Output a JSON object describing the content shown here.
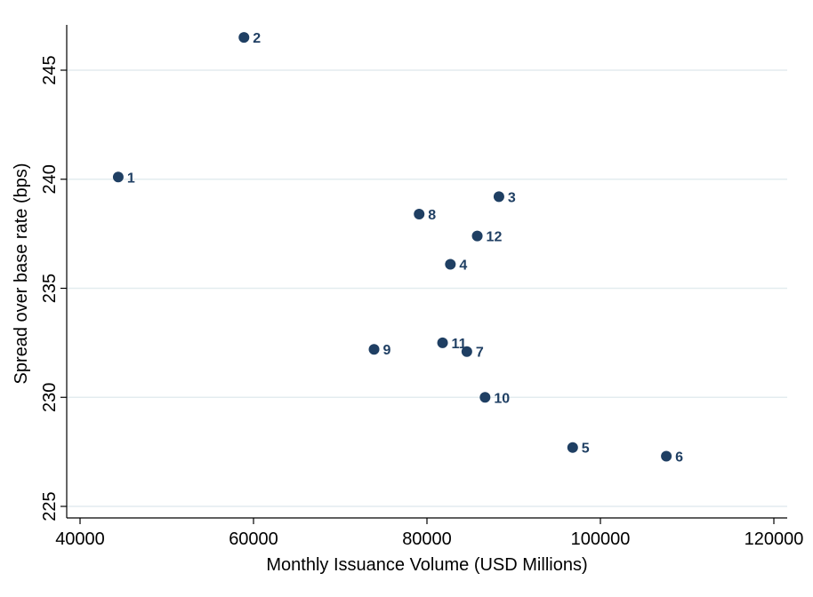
{
  "chart_data": {
    "type": "scatter",
    "title": "",
    "xlabel": "Monthly Issuance Volume (USD Millions)",
    "ylabel": "Spread over base rate (bps)",
    "xlim": [
      40000,
      120000
    ],
    "ylim": [
      225,
      247
    ],
    "x_ticks": [
      40000,
      60000,
      80000,
      100000,
      120000
    ],
    "y_ticks": [
      225,
      230,
      235,
      240,
      245
    ],
    "grid": true,
    "marker_color": "#1f3f63",
    "grid_color": "#e3ecef",
    "points": [
      {
        "label": "1",
        "x": 44400,
        "y": 240.1
      },
      {
        "label": "2",
        "x": 58900,
        "y": 246.5
      },
      {
        "label": "3",
        "x": 88300,
        "y": 239.2
      },
      {
        "label": "4",
        "x": 82700,
        "y": 236.1
      },
      {
        "label": "5",
        "x": 96800,
        "y": 227.7
      },
      {
        "label": "6",
        "x": 107600,
        "y": 227.3
      },
      {
        "label": "7",
        "x": 84600,
        "y": 232.1
      },
      {
        "label": "8",
        "x": 79100,
        "y": 238.4
      },
      {
        "label": "9",
        "x": 73900,
        "y": 232.2
      },
      {
        "label": "10",
        "x": 86700,
        "y": 230.0
      },
      {
        "label": "11",
        "x": 81800,
        "y": 232.5
      },
      {
        "label": "12",
        "x": 85800,
        "y": 237.4
      }
    ]
  }
}
